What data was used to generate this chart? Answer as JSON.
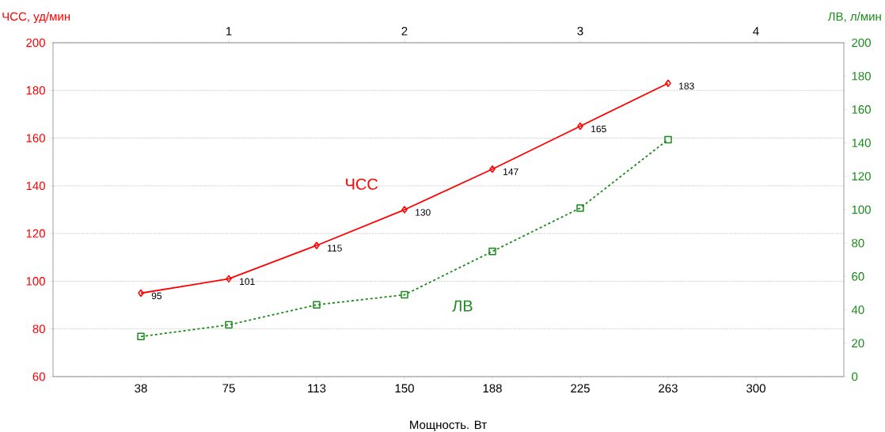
{
  "chart_data": {
    "type": "line",
    "xlabel": "Мощность. Вт",
    "ylabel": "ЧСС, уд/мин",
    "y2label": "ЛВ, л/мин",
    "x": [
      37.5,
      75,
      112.5,
      150,
      187.5,
      225,
      262.5
    ],
    "xlim": [
      0,
      337.5
    ],
    "xticks": [
      {
        "value": 37.5,
        "label": "38"
      },
      75,
      {
        "value": 112.5,
        "label": "113"
      },
      150,
      {
        "value": 187.5,
        "label": "188"
      },
      225,
      {
        "value": 262.5,
        "label": "263"
      },
      300
    ],
    "x2lim": [
      0,
      4.5
    ],
    "x2ticks": [
      1,
      2,
      3,
      4
    ],
    "ylim": [
      60,
      200
    ],
    "yticks": [
      60,
      80,
      100,
      120,
      140,
      160,
      180,
      200
    ],
    "y2lim": [
      0,
      200
    ],
    "y2ticks": [
      0,
      20,
      40,
      60,
      80,
      100,
      120,
      140,
      160,
      180,
      200
    ],
    "grid": "y",
    "series": [
      {
        "name": "ЧСС",
        "color": "#ff0000",
        "marker": "diamond",
        "line_style": "solid",
        "axis": "y",
        "values": [
          95,
          101,
          115,
          130,
          147,
          165,
          183
        ],
        "value_labels": [
          "95",
          "101",
          "115",
          "130",
          "147",
          "165",
          "183"
        ]
      },
      {
        "name": "ЛВ",
        "color": "#1a8a1a",
        "marker": "square",
        "line_style": "dashed",
        "axis": "y2",
        "values": [
          24,
          31,
          43,
          49,
          75,
          101,
          142
        ]
      }
    ]
  }
}
